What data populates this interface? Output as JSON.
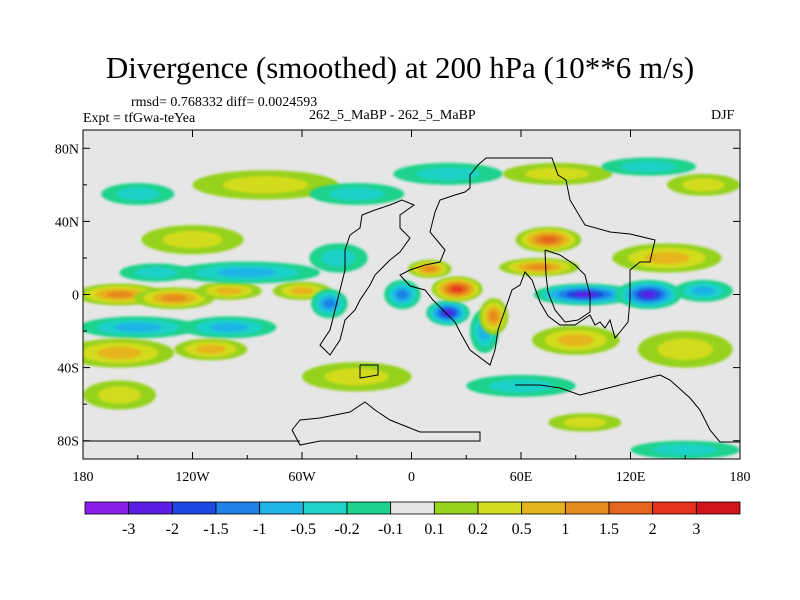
{
  "chart_data": {
    "type": "heatmap",
    "title": "Divergence (smoothed) at 200 hPa (10**6 m/s)",
    "stats": "rmsd= 0.768332 diff= 0.0024593",
    "experiment": "Expt = tfGwa-teYea",
    "case": "262_5_MaBP - 262_5_MaBP",
    "season": "DJF",
    "x_ticks": [
      "180",
      "120W",
      "60W",
      "0",
      "60E",
      "120E",
      "180"
    ],
    "y_ticks": [
      "80N",
      "40N",
      "0",
      "40S",
      "80S"
    ],
    "xlim": [
      -180,
      180
    ],
    "ylim": [
      -90,
      90
    ],
    "levels": [
      "-3",
      "-2",
      "-1.5",
      "-1",
      "-0.5",
      "-0.2",
      "-0.1",
      "0.1",
      "0.2",
      "0.5",
      "1",
      "1.5",
      "2",
      "3"
    ],
    "colors": [
      "#8a1ee6",
      "#5a1ee6",
      "#1e46e0",
      "#1e82e6",
      "#1eb4e6",
      "#1ed2c8",
      "#1ed28c",
      "#e6e6e6",
      "#96d21e",
      "#d2dc1e",
      "#e6b41e",
      "#e68c1e",
      "#e6641e",
      "#e6321e",
      "#d2141e"
    ],
    "features": [
      {
        "lon": -160,
        "lat": 0,
        "value": 1.2,
        "w": 24,
        "h": 6
      },
      {
        "lon": -130,
        "lat": -2,
        "value": 1.0,
        "w": 22,
        "h": 6
      },
      {
        "lon": -100,
        "lat": 2,
        "value": 0.7,
        "w": 18,
        "h": 5
      },
      {
        "lon": -60,
        "lat": 2,
        "value": 0.6,
        "w": 16,
        "h": 5
      },
      {
        "lon": -150,
        "lat": -18,
        "value": -0.7,
        "w": 32,
        "h": 6
      },
      {
        "lon": -100,
        "lat": -18,
        "value": -0.5,
        "w": 26,
        "h": 6
      },
      {
        "lon": -160,
        "lat": -32,
        "value": 0.6,
        "w": 30,
        "h": 8
      },
      {
        "lon": -110,
        "lat": -30,
        "value": 0.5,
        "w": 20,
        "h": 6
      },
      {
        "lon": -120,
        "lat": 30,
        "value": 0.3,
        "w": 28,
        "h": 8
      },
      {
        "lon": -90,
        "lat": 12,
        "value": -0.5,
        "w": 40,
        "h": 6
      },
      {
        "lon": -140,
        "lat": 12,
        "value": -0.3,
        "w": 20,
        "h": 5
      },
      {
        "lon": -40,
        "lat": 20,
        "value": -0.3,
        "w": 16,
        "h": 8
      },
      {
        "lon": -45,
        "lat": -5,
        "value": -1.0,
        "w": 10,
        "h": 8
      },
      {
        "lon": -5,
        "lat": 0,
        "value": -1.2,
        "w": 10,
        "h": 8
      },
      {
        "lon": 20,
        "lat": -10,
        "value": -2.3,
        "w": 12,
        "h": 7
      },
      {
        "lon": 40,
        "lat": -20,
        "value": -0.8,
        "w": 8,
        "h": 12
      },
      {
        "lon": 25,
        "lat": 3,
        "value": 2.2,
        "w": 14,
        "h": 7
      },
      {
        "lon": 10,
        "lat": 14,
        "value": 1.3,
        "w": 12,
        "h": 5
      },
      {
        "lon": 45,
        "lat": -12,
        "value": 1.0,
        "w": 8,
        "h": 10
      },
      {
        "lon": 75,
        "lat": 30,
        "value": 1.9,
        "w": 18,
        "h": 7
      },
      {
        "lon": 70,
        "lat": 15,
        "value": 1.4,
        "w": 22,
        "h": 5
      },
      {
        "lon": 140,
        "lat": 20,
        "value": 0.6,
        "w": 30,
        "h": 8
      },
      {
        "lon": 95,
        "lat": 0,
        "value": -2.4,
        "w": 28,
        "h": 6
      },
      {
        "lon": 130,
        "lat": 0,
        "value": -2.0,
        "w": 18,
        "h": 8
      },
      {
        "lon": 160,
        "lat": 2,
        "value": -0.6,
        "w": 16,
        "h": 6
      },
      {
        "lon": 90,
        "lat": -25,
        "value": 0.8,
        "w": 24,
        "h": 8
      },
      {
        "lon": 150,
        "lat": -30,
        "value": 0.4,
        "w": 26,
        "h": 10
      },
      {
        "lon": 160,
        "lat": 60,
        "value": 0.4,
        "w": 20,
        "h": 6
      },
      {
        "lon": -80,
        "lat": 60,
        "value": 0.3,
        "w": 40,
        "h": 8
      },
      {
        "lon": -30,
        "lat": 55,
        "value": -0.3,
        "w": 26,
        "h": 6
      },
      {
        "lon": 20,
        "lat": 66,
        "value": -0.2,
        "w": 30,
        "h": 6
      },
      {
        "lon": 80,
        "lat": 66,
        "value": 0.2,
        "w": 30,
        "h": 6
      },
      {
        "lon": 130,
        "lat": 70,
        "value": -0.2,
        "w": 26,
        "h": 5
      },
      {
        "lon": -150,
        "lat": 55,
        "value": -0.2,
        "w": 20,
        "h": 6
      },
      {
        "lon": -160,
        "lat": -55,
        "value": 0.2,
        "w": 20,
        "h": 8
      },
      {
        "lon": -30,
        "lat": -45,
        "value": 0.2,
        "w": 30,
        "h": 8
      },
      {
        "lon": 60,
        "lat": -50,
        "value": -0.2,
        "w": 30,
        "h": 6
      },
      {
        "lon": 150,
        "lat": -85,
        "value": -0.2,
        "w": 30,
        "h": 5
      },
      {
        "lon": 95,
        "lat": -70,
        "value": 0.2,
        "w": 20,
        "h": 5
      }
    ]
  }
}
